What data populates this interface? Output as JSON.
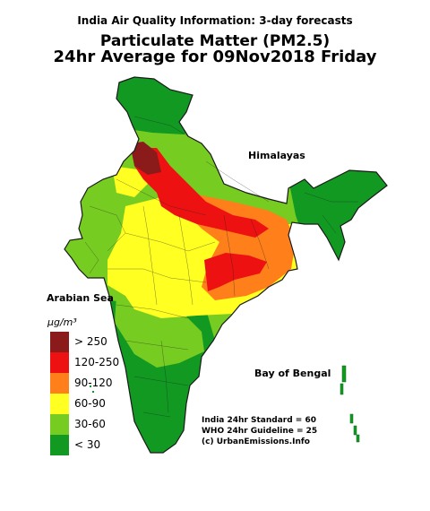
{
  "header": {
    "line1": "India Air Quality Information: 3-day forecasts",
    "line2": "Particulate Matter (PM2.5)",
    "line3": "24hr Average for 09Nov2018 Friday"
  },
  "map_labels": {
    "himalayas": "Himalayas",
    "arabian_sea": "Arabian Sea",
    "bay_of_bengal": "Bay of Bengal"
  },
  "legend": {
    "unit": "μg/m³",
    "classes": [
      {
        "label": "> 250",
        "color": "#8b1a1a"
      },
      {
        "label": "120-250",
        "color": "#ee1111"
      },
      {
        "label": "90-120",
        "color": "#ff7f1a"
      },
      {
        "label": "60-90",
        "color": "#ffff22"
      },
      {
        "label": "30-60",
        "color": "#77cc22"
      },
      {
        "label": "< 30",
        "color": "#119922"
      }
    ]
  },
  "notes": {
    "standard": "India 24hr Standard = 60",
    "guideline": "WHO 24hr Guideline = 25",
    "credit": "(c) UrbanEmissions.Info"
  }
}
